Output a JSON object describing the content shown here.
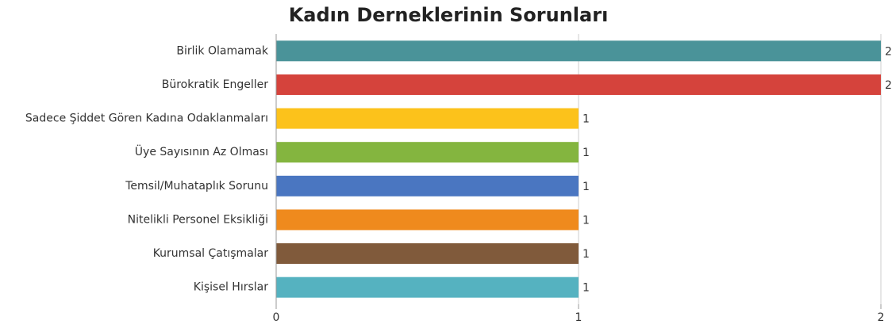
{
  "chart_data": {
    "type": "barh",
    "title": "Kadın Derneklerinin Sorunları",
    "categories": [
      "Birlik Olamamak",
      "Bürokratik Engeller",
      "Sadece Şiddet Gören Kadına Odaklanmaları",
      "Üye Sayısının Az Olması",
      "Temsil/Muhataplık Sorunu",
      "Nitelikli Personel Eksikliği",
      "Kurumsal Çatışmalar",
      "Kişisel Hırslar"
    ],
    "values": [
      2,
      2,
      1,
      1,
      1,
      1,
      1,
      1
    ],
    "colors": [
      "#4a9399",
      "#d5433c",
      "#fcc21b",
      "#84b53f",
      "#4a76c1",
      "#ef8a1d",
      "#805a3b",
      "#55b2c0"
    ],
    "xlim": [
      0,
      2
    ],
    "xticks": [
      0,
      1,
      2
    ],
    "grid": true
  }
}
